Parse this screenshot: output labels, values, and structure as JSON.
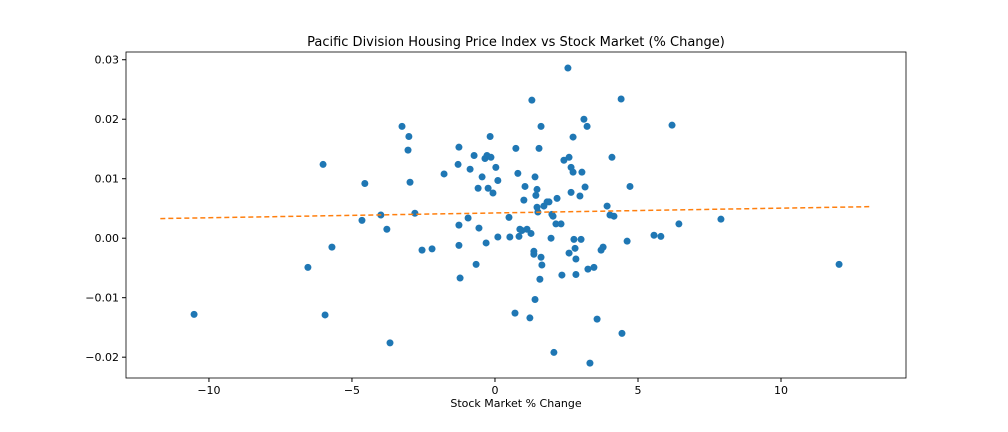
{
  "chart_data": {
    "type": "scatter",
    "title": "Pacific Division Housing Price Index vs Stock Market (% Change)",
    "x_label": "Stock Market % Change",
    "xlim": [
      -12.9,
      14.37
    ],
    "ylim": [
      -0.0235,
      0.0313
    ],
    "xticks": [
      {
        "value": -10,
        "label": "−10"
      },
      {
        "value": -5,
        "label": "−5"
      },
      0,
      5,
      10
    ],
    "yticks": [
      {
        "value": -0.02,
        "label": "−0.02"
      },
      {
        "value": -0.01,
        "label": "−0.01"
      },
      {
        "value": 0,
        "label": "0.00"
      },
      0.01,
      0.02,
      0.03
    ],
    "series": [
      {
        "type": "scatter",
        "color": "#1f77b4",
        "x": [
          -10.52,
          -6.54,
          -6.01,
          -5.94,
          -5.7,
          -4.65,
          -4.55,
          -3.99,
          -3.78,
          -3.67,
          -3.25,
          -3.01,
          -3.04,
          -2.97,
          -2.8,
          -2.55,
          -2.2,
          -1.78,
          -1.26,
          -1.29,
          -1.26,
          -1.26,
          -1.22,
          -0.94,
          -0.87,
          -0.73,
          -0.66,
          -0.59,
          -0.56,
          -0.45,
          -0.35,
          -0.31,
          -0.28,
          -0.24,
          -0.17,
          -0.14,
          -0.07,
          0.03,
          0.1,
          0.1,
          0.49,
          0.52,
          0.7,
          0.73,
          0.8,
          0.84,
          0.87,
          0.94,
          1.01,
          1.05,
          1.12,
          1.22,
          1.26,
          1.29,
          1.36,
          1.36,
          1.4,
          1.4,
          1.43,
          1.47,
          1.47,
          1.5,
          1.54,
          1.57,
          1.61,
          1.61,
          1.64,
          1.71,
          1.82,
          1.89,
          1.96,
          1.99,
          2.03,
          2.06,
          2.13,
          2.17,
          2.31,
          2.34,
          2.41,
          2.55,
          2.59,
          2.59,
          2.66,
          2.66,
          2.73,
          2.73,
          2.76,
          2.8,
          2.83,
          2.83,
          2.97,
          3.04,
          3.01,
          3.11,
          3.15,
          3.22,
          3.25,
          3.32,
          3.46,
          3.57,
          3.71,
          3.78,
          3.92,
          4.02,
          4.09,
          4.16,
          4.41,
          4.44,
          4.62,
          4.72,
          5.56,
          5.8,
          6.19,
          6.43,
          7.9,
          12.03
        ],
        "values": [
          -0.0128,
          -0.0049,
          0.0124,
          -0.0129,
          -0.0015,
          0.003,
          0.0092,
          0.0039,
          0.0015,
          -0.0176,
          0.0188,
          0.0171,
          0.0148,
          0.0094,
          0.0042,
          -0.002,
          -0.0018,
          0.0108,
          0.0153,
          0.0124,
          0.0022,
          -0.0012,
          -0.0067,
          0.0034,
          0.0116,
          0.0139,
          -0.0044,
          0.0084,
          0.0017,
          0.0103,
          0.0134,
          -0.0008,
          0.0139,
          0.0084,
          0.0171,
          0.0136,
          0.0076,
          0.0119,
          0.0097,
          0.0002,
          0.0035,
          0.0002,
          -0.0126,
          0.0151,
          0.0109,
          0.0003,
          0.0015,
          0.0013,
          0.0064,
          0.0087,
          0.0015,
          -0.0134,
          0.0008,
          0.0232,
          -0.0022,
          -0.0027,
          0.0103,
          -0.0103,
          0.0072,
          0.0082,
          0.0052,
          0.0044,
          0.0151,
          -0.0069,
          0.0188,
          -0.0032,
          -0.0045,
          0.0054,
          0.0061,
          0.0061,
          0.0,
          0.004,
          0.0037,
          -0.0192,
          0.0024,
          0.0067,
          0.0024,
          -0.0062,
          0.0131,
          0.0286,
          0.0136,
          -0.0025,
          0.0119,
          0.0077,
          0.017,
          0.0111,
          -0.0002,
          -0.0017,
          -0.0035,
          -0.0061,
          0.0071,
          0.0111,
          -0.0002,
          0.02,
          0.0086,
          0.0188,
          -0.0052,
          -0.021,
          -0.0049,
          -0.0136,
          -0.002,
          -0.0015,
          0.0054,
          0.0039,
          0.0136,
          0.0037,
          0.0234,
          -0.016,
          -0.0005,
          0.0087,
          0.0005,
          0.0003,
          0.019,
          0.0024,
          0.0032,
          -0.0044
        ]
      },
      {
        "type": "line",
        "color": "#ff7f0e",
        "dashed": true,
        "x": [
          -11.7,
          13.1
        ],
        "values": [
          0.0033,
          0.0053
        ]
      }
    ]
  }
}
